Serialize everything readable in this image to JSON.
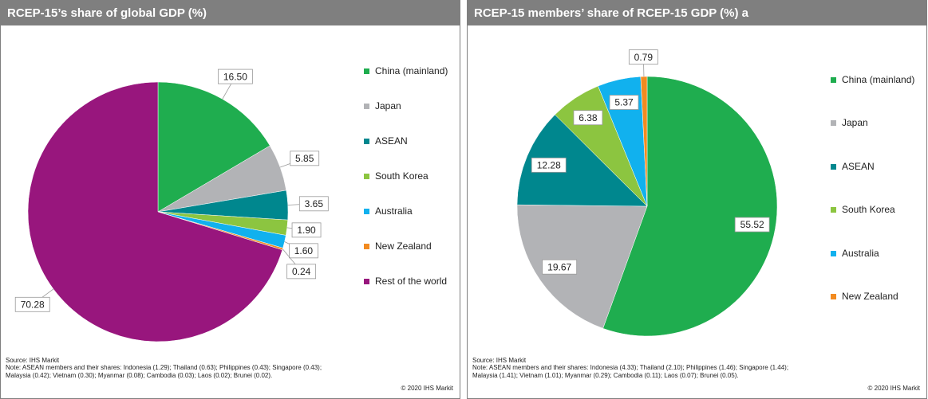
{
  "chart_data": [
    {
      "type": "pie",
      "title": "RCEP-15’s share of global GDP (%)",
      "categories": [
        "China (mainland)",
        "Japan",
        "ASEAN",
        "South Korea",
        "Australia",
        "New Zealand",
        "Rest of the world"
      ],
      "values": [
        16.5,
        5.85,
        3.65,
        1.9,
        1.6,
        0.24,
        70.28
      ],
      "value_labels": [
        "16.50",
        "5.85",
        "3.65",
        "1.90",
        "1.60",
        "0.24",
        "70.28"
      ],
      "colors": [
        "#1fad4f",
        "#b2b3b6",
        "#00878e",
        "#8cc540",
        "#11b1ee",
        "#f28b20",
        "#98167d"
      ],
      "source": "Source: IHS Markit",
      "note": "Note: ASEAN members and their shares: Indonesia (1.29); Thailand  (0.63); Philippines (0.43); Singapore (0.43); Malaysia (0.42); Vietnam (0.30); Myanmar (0.08); Cambodia (0.03); Laos (0.02); Brunei (0.02).",
      "copyright": "© 2020  IHS Markit"
    },
    {
      "type": "pie",
      "title": "RCEP-15 members’ share of RCEP-15 GDP (%) a",
      "categories": [
        "China (mainland)",
        "Japan",
        "ASEAN",
        "South Korea",
        "Australia",
        "New Zealand"
      ],
      "values": [
        55.52,
        19.67,
        12.28,
        6.38,
        5.37,
        0.79
      ],
      "colors": [
        "#1fad4f",
        "#b2b3b6",
        "#00878e",
        "#8cc540",
        "#11b1ee",
        "#f28b20"
      ],
      "source": "Source: IHS Markit",
      "note": "Note: ASEAN members and their shares: Indonesia (4.33); Thailand  (2.10); Philippines (1.46); Singapore (1.44); Malaysia (1.41); Vietnam (1.01); Myanmar (0.29); Cambodia (0.11); Laos (0.07); Brunei (0.05).",
      "copyright": "© 2020  IHS Markit"
    }
  ]
}
